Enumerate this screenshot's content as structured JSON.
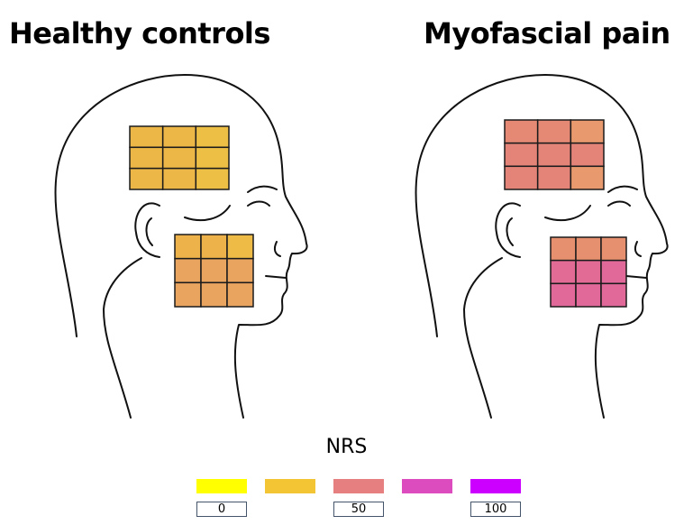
{
  "titles": {
    "left": "Healthy controls",
    "right": "Myofascial pain"
  },
  "legend": {
    "label": "NRS",
    "colors": [
      "#ffff00",
      "#f3c534",
      "#e68080",
      "#dd4cbf",
      "#cc00ff"
    ],
    "ticks": [
      "0",
      "50",
      "100"
    ]
  },
  "panels": [
    {
      "name": "healthy-controls",
      "temple_grid": [
        [
          "#edb747",
          "#edb747",
          "#eebf45"
        ],
        [
          "#edb747",
          "#edb747",
          "#eebf45"
        ],
        [
          "#edb747",
          "#edb747",
          "#eebf45"
        ]
      ],
      "masseter_grid": [
        [
          "#edb34a",
          "#edb34a",
          "#eebb47"
        ],
        [
          "#e9a45f",
          "#e9a45f",
          "#e9a45f"
        ],
        [
          "#e9a45f",
          "#e9a45f",
          "#e9a45f"
        ]
      ]
    },
    {
      "name": "myofascial-pain",
      "temple_grid": [
        [
          "#e58975",
          "#e58975",
          "#e8996d"
        ],
        [
          "#e48478",
          "#e48478",
          "#e48478"
        ],
        [
          "#e48478",
          "#e48478",
          "#e8996d"
        ]
      ],
      "masseter_grid": [
        [
          "#e6906f",
          "#e6906f",
          "#e6906f"
        ],
        [
          "#e16b94",
          "#e16b94",
          "#e0699a"
        ],
        [
          "#e0699a",
          "#e0699a",
          "#e0699a"
        ]
      ]
    }
  ]
}
